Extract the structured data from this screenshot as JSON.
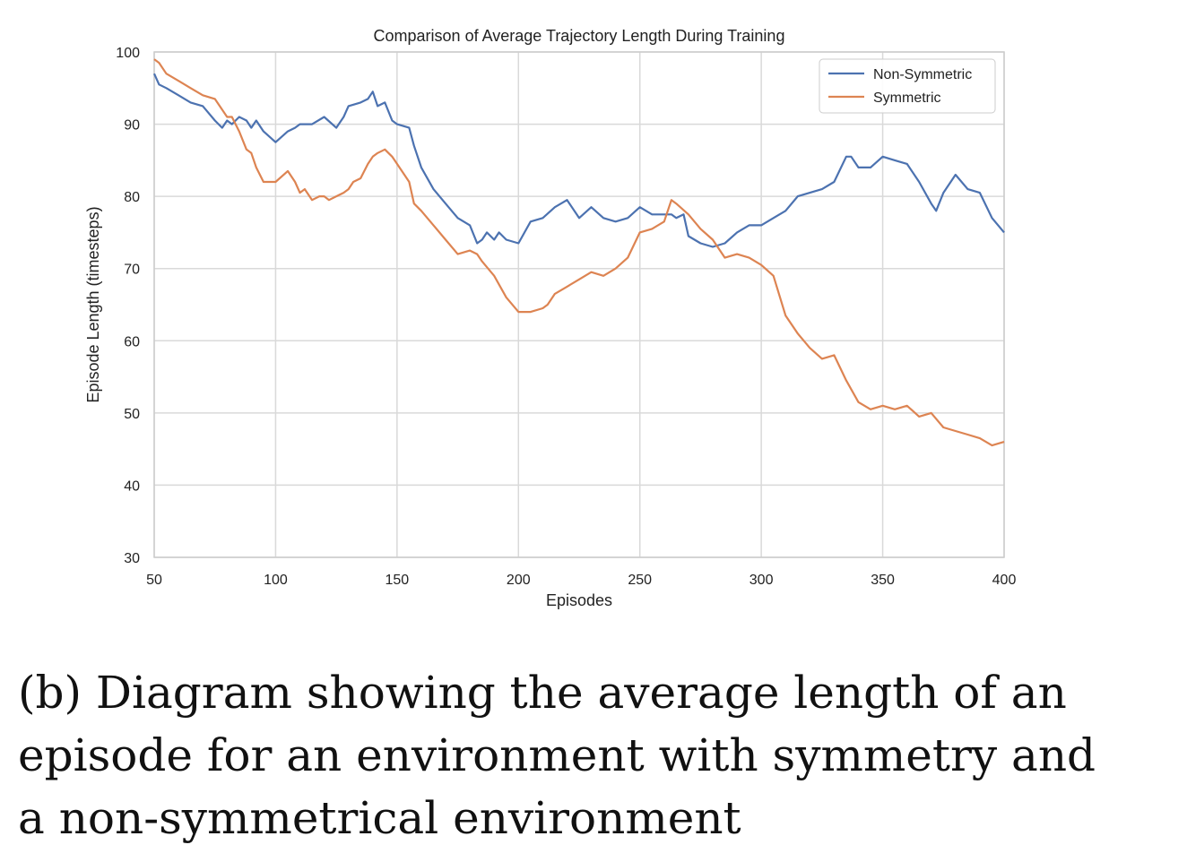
{
  "chart_data": {
    "type": "line",
    "title": "Comparison of Average Trajectory Length During Training",
    "xlabel": "Episodes",
    "ylabel": "Episode Length (timesteps)",
    "xlim": [
      50,
      400
    ],
    "ylim": [
      30,
      100
    ],
    "xticks": [
      50,
      100,
      150,
      200,
      250,
      300,
      350,
      400
    ],
    "yticks": [
      30,
      40,
      50,
      60,
      70,
      80,
      90,
      100
    ],
    "grid": true,
    "legend_position": "top-right",
    "series": [
      {
        "name": "Non-Symmetric",
        "color": "#4c72b0",
        "x": [
          50,
          52,
          55,
          60,
          65,
          70,
          75,
          78,
          80,
          82,
          85,
          88,
          90,
          92,
          95,
          100,
          105,
          108,
          110,
          115,
          120,
          125,
          128,
          130,
          135,
          138,
          140,
          142,
          145,
          148,
          150,
          155,
          157,
          160,
          165,
          170,
          175,
          180,
          183,
          185,
          187,
          190,
          192,
          195,
          200,
          205,
          210,
          215,
          220,
          225,
          230,
          235,
          240,
          245,
          250,
          255,
          260,
          263,
          265,
          268,
          270,
          275,
          280,
          285,
          290,
          295,
          300,
          305,
          310,
          315,
          320,
          325,
          330,
          335,
          337,
          340,
          345,
          350,
          355,
          360,
          365,
          370,
          372,
          375,
          380,
          385,
          390,
          395,
          400
        ],
        "y": [
          97,
          95.5,
          95,
          94,
          93,
          92.5,
          90.5,
          89.5,
          90.5,
          90,
          91,
          90.5,
          89.5,
          90.5,
          89,
          87.5,
          89,
          89.5,
          90,
          90,
          91,
          89.5,
          91,
          92.5,
          93,
          93.5,
          94.5,
          92.5,
          93,
          90.5,
          90,
          89.5,
          87,
          84,
          81,
          79,
          77,
          76,
          73.5,
          74,
          75,
          74,
          75,
          74,
          73.5,
          76.5,
          77,
          78.5,
          79.5,
          77,
          78.5,
          77,
          76.5,
          77,
          78.5,
          77.5,
          77.5,
          77.5,
          77,
          77.5,
          74.5,
          73.5,
          73,
          73.5,
          75,
          76,
          76,
          77,
          78,
          80,
          80.5,
          81,
          82,
          85.5,
          85.5,
          84,
          84,
          85.5,
          85,
          84.5,
          82,
          79,
          78,
          80.5,
          83,
          81,
          80.5,
          77,
          75
        ]
      },
      {
        "name": "Symmetric",
        "color": "#dd8452",
        "x": [
          50,
          52,
          55,
          60,
          65,
          70,
          75,
          80,
          82,
          85,
          88,
          90,
          92,
          95,
          100,
          105,
          108,
          110,
          112,
          115,
          118,
          120,
          122,
          125,
          128,
          130,
          132,
          135,
          138,
          140,
          142,
          145,
          148,
          150,
          155,
          157,
          160,
          165,
          170,
          175,
          180,
          183,
          185,
          190,
          195,
          200,
          205,
          210,
          212,
          215,
          220,
          225,
          230,
          235,
          240,
          245,
          250,
          255,
          260,
          263,
          265,
          270,
          275,
          280,
          285,
          290,
          295,
          300,
          305,
          310,
          315,
          320,
          325,
          330,
          335,
          340,
          345,
          350,
          355,
          360,
          365,
          370,
          375,
          380,
          385,
          390,
          395,
          400
        ],
        "y": [
          99,
          98.5,
          97,
          96,
          95,
          94,
          93.5,
          91,
          91,
          89,
          86.5,
          86,
          84,
          82,
          82,
          83.5,
          82,
          80.5,
          81,
          79.5,
          80,
          80,
          79.5,
          80,
          80.5,
          81,
          82,
          82.5,
          84.5,
          85.5,
          86,
          86.5,
          85.5,
          84.5,
          82,
          79,
          78,
          76,
          74,
          72,
          72.5,
          72,
          71,
          69,
          66,
          64,
          64,
          64.5,
          65,
          66.5,
          67.5,
          68.5,
          69.5,
          69,
          70,
          71.5,
          75,
          75.5,
          76.5,
          79.5,
          79,
          77.5,
          75.5,
          74,
          71.5,
          72,
          71.5,
          70.5,
          69,
          63.5,
          61,
          59,
          57.5,
          58,
          54.5,
          51.5,
          50.5,
          51,
          50.5,
          51,
          49.5,
          50,
          48,
          47.5,
          47,
          46.5,
          45.5,
          46
        ]
      }
    ]
  },
  "caption": "(b) Diagram showing the average length of an episode for an environment with symmetry and a non-symmetrical environment"
}
